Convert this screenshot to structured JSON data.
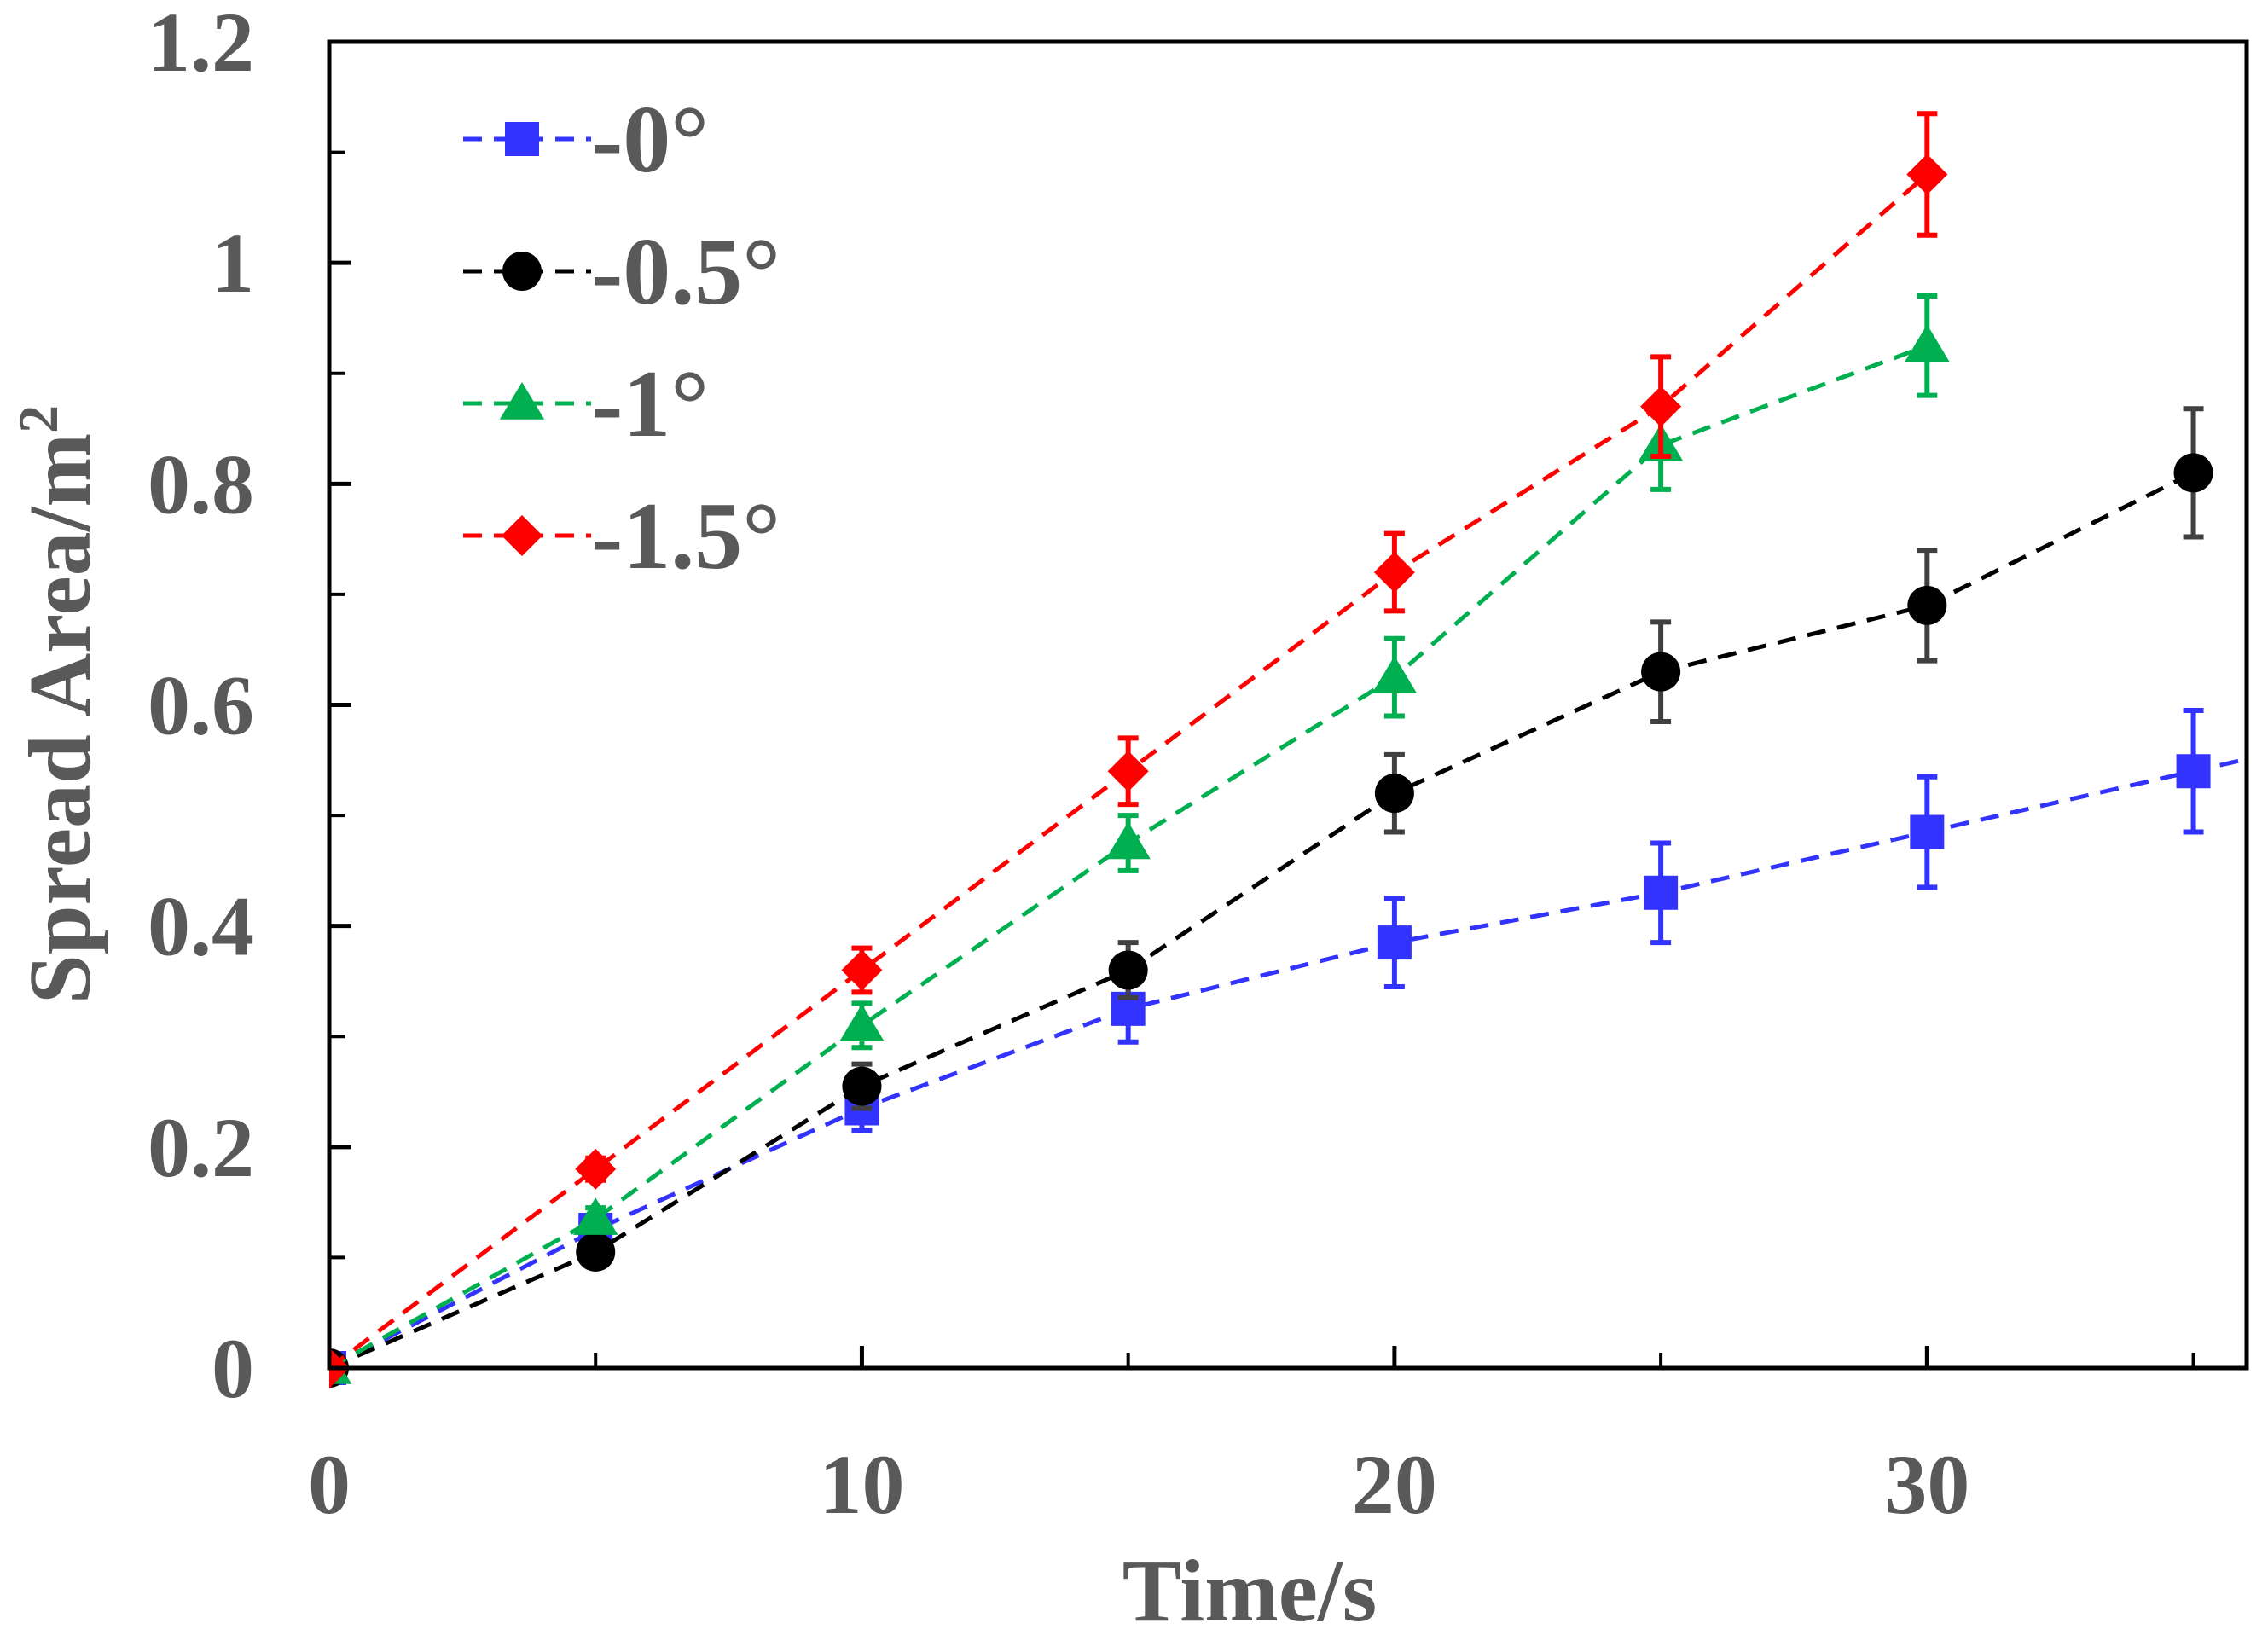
{
  "chart_data": {
    "type": "line",
    "title": "",
    "xlabel": "Time/s",
    "ylabel": "Spread Area/m",
    "ylabel_superscript": "2",
    "xlim": [
      0,
      36
    ],
    "ylim": [
      0,
      1.2
    ],
    "x_ticks": [
      0,
      10,
      20,
      30
    ],
    "x_tick_labels": [
      "0",
      "10",
      "20",
      "30"
    ],
    "x_minor_step": 5,
    "y_ticks": [
      0,
      0.2,
      0.4,
      0.6,
      0.8,
      1,
      1.2
    ],
    "y_tick_labels": [
      "0",
      "0.2",
      "0.4",
      "0.6",
      "0.8",
      "1",
      "1.2"
    ],
    "y_minor_step": 0.1,
    "grid": false,
    "legend_position": "top-left",
    "series": [
      {
        "name": "0°",
        "legend_label": "-0°",
        "color": "#3333ff",
        "marker": "square",
        "x": [
          0,
          5,
          10,
          15,
          20,
          25,
          30,
          35
        ],
        "y": [
          0,
          0.125,
          0.235,
          0.325,
          0.385,
          0.43,
          0.485,
          0.54
        ],
        "err": [
          0,
          0.01,
          0.02,
          0.03,
          0.04,
          0.045,
          0.05,
          0.055
        ],
        "extends_beyond": true
      },
      {
        "name": "0.5°",
        "legend_label": "-0.5°",
        "color": "#000000",
        "marker": "circle",
        "x": [
          0,
          5,
          10,
          15,
          20,
          25,
          30,
          35
        ],
        "y": [
          0,
          0.105,
          0.255,
          0.36,
          0.52,
          0.63,
          0.69,
          0.81
        ],
        "err": [
          0,
          0.01,
          0.02,
          0.025,
          0.035,
          0.045,
          0.05,
          0.058
        ]
      },
      {
        "name": "1°",
        "legend_label": "-1°",
        "color": "#00b050",
        "marker": "triangle",
        "x": [
          0,
          5,
          10,
          15,
          20,
          25,
          30
        ],
        "y": [
          0,
          0.135,
          0.31,
          0.475,
          0.625,
          0.835,
          0.925
        ],
        "err": [
          0,
          0.01,
          0.02,
          0.025,
          0.035,
          0.04,
          0.045
        ]
      },
      {
        "name": "1.5°",
        "legend_label": "-1.5°",
        "color": "#ff0000",
        "marker": "diamond",
        "x": [
          0,
          5,
          10,
          15,
          20,
          25,
          30
        ],
        "y": [
          0,
          0.18,
          0.36,
          0.54,
          0.72,
          0.87,
          1.08
        ],
        "err": [
          0,
          0.01,
          0.02,
          0.03,
          0.035,
          0.045,
          0.055
        ]
      }
    ]
  }
}
